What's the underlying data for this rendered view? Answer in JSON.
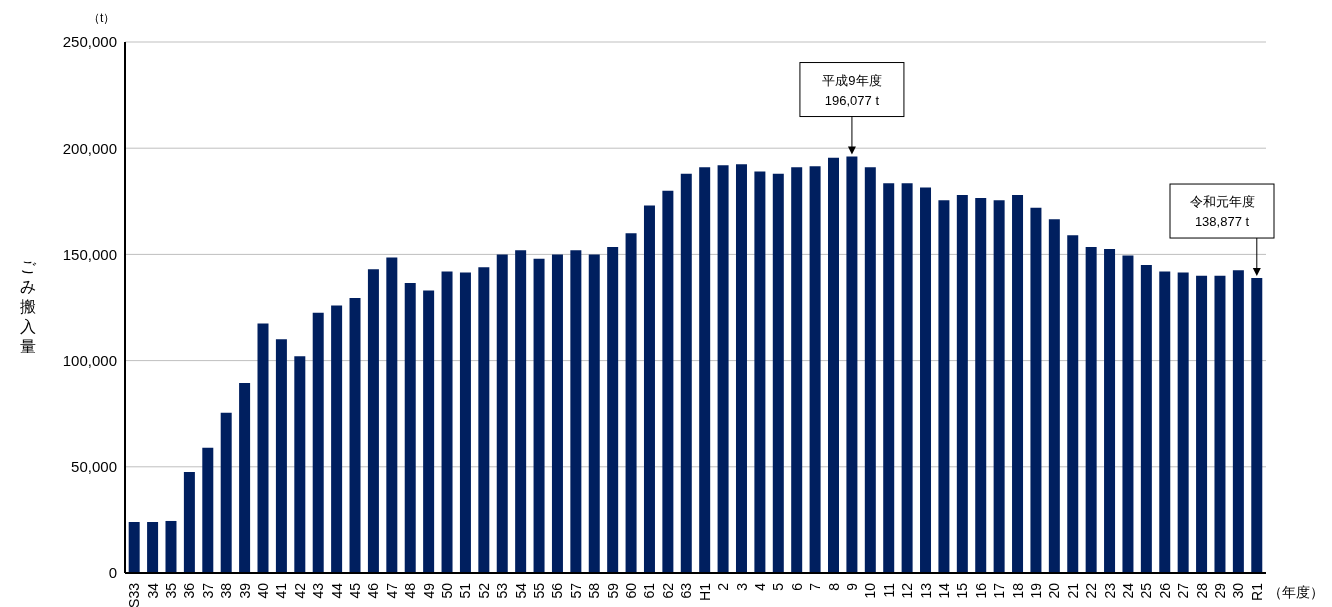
{
  "chart_data": {
    "type": "bar",
    "ylabel": "ごみ搬入量",
    "xlabel": "（年度）",
    "annotations": [
      "（t）",
      {
        "text": "平成9年度\n196,077 t",
        "x": "9",
        "y": 196077
      },
      {
        "text": "令和元年度\n138,877 t",
        "x": "R1",
        "y": 138877
      }
    ],
    "categories": [
      "S33",
      "34",
      "35",
      "36",
      "37",
      "38",
      "39",
      "40",
      "41",
      "42",
      "43",
      "44",
      "45",
      "46",
      "47",
      "48",
      "49",
      "50",
      "51",
      "52",
      "53",
      "54",
      "55",
      "56",
      "57",
      "58",
      "59",
      "60",
      "61",
      "62",
      "63",
      "H1",
      "2",
      "3",
      "4",
      "5",
      "6",
      "7",
      "8",
      "9",
      "10",
      "11",
      "12",
      "13",
      "14",
      "15",
      "16",
      "17",
      "18",
      "19",
      "20",
      "21",
      "22",
      "23",
      "24",
      "25",
      "26",
      "27",
      "28",
      "29",
      "30",
      "R1"
    ],
    "values": [
      24000,
      24000,
      24500,
      47500,
      59000,
      75500,
      89500,
      117500,
      110000,
      102000,
      122500,
      126000,
      129500,
      143000,
      148500,
      136500,
      133000,
      142000,
      141500,
      144000,
      150000,
      152000,
      148000,
      150000,
      152000,
      150000,
      153500,
      160000,
      173000,
      180000,
      188000,
      191000,
      192000,
      192500,
      189000,
      188000,
      191000,
      191500,
      195500,
      196077,
      191000,
      183500,
      183500,
      181500,
      175500,
      178000,
      176500,
      175500,
      178000,
      172000,
      166500,
      159000,
      153500,
      152500,
      149500,
      145000,
      142000,
      141500,
      140000,
      140000,
      142500,
      138877
    ],
    "color": "#001f5f",
    "ylim": [
      0,
      250000
    ],
    "yticks": [
      0,
      {
        "value": 50000,
        "label": "50,000"
      },
      {
        "value": 100000,
        "label": "100,000"
      },
      {
        "value": 150000,
        "label": "150,000"
      },
      {
        "value": 200000,
        "label": "200,000"
      },
      {
        "value": 250000,
        "label": "250,000"
      }
    ],
    "grid": "y",
    "legend": false
  }
}
